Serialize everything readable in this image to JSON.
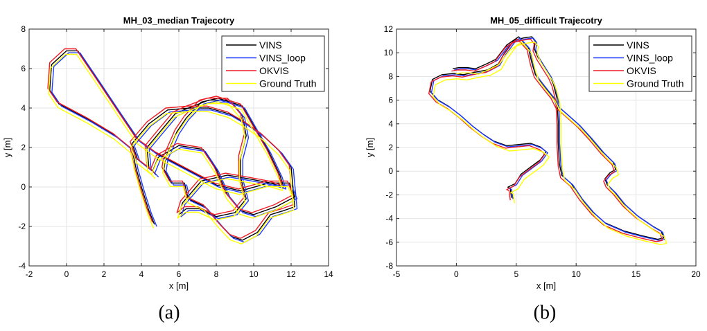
{
  "captions": {
    "a": "(a)",
    "b": "(b)"
  },
  "colors": {
    "VINS": "#000000",
    "VINS_loop": "#1f3bff",
    "OKVIS": "#ee1c25",
    "Ground Truth": "#ffff00"
  },
  "chart_data": [
    {
      "type": "line",
      "title": "MH_03_median Trajecotry",
      "xlabel": "x [m]",
      "ylabel": "y [m]",
      "xlim": [
        -2,
        14
      ],
      "ylim": [
        -4,
        8
      ],
      "xticks": [
        -2,
        0,
        2,
        4,
        6,
        8,
        10,
        12,
        14
      ],
      "yticks": [
        -4,
        -2,
        0,
        2,
        4,
        6,
        8
      ],
      "grid": true,
      "legend": "top-right",
      "series": [
        {
          "name": "VINS",
          "offset": [
            0.0,
            0.0
          ]
        },
        {
          "name": "VINS_loop",
          "offset": [
            0.12,
            -0.1
          ]
        },
        {
          "name": "OKVIS",
          "offset": [
            -0.1,
            0.1
          ]
        },
        {
          "name": "Ground Truth",
          "offset": [
            -0.06,
            -0.18
          ]
        }
      ],
      "path": [
        [
          4.7,
          -1.9
        ],
        [
          4.4,
          -1.2
        ],
        [
          4.0,
          0.0
        ],
        [
          3.7,
          1.0
        ],
        [
          3.5,
          1.9
        ],
        [
          2.6,
          2.6
        ],
        [
          1.2,
          3.4
        ],
        [
          -0.4,
          4.2
        ],
        [
          -0.9,
          4.9
        ],
        [
          -0.8,
          6.2
        ],
        [
          0.0,
          6.9
        ],
        [
          0.6,
          6.9
        ],
        [
          1.6,
          5.5
        ],
        [
          2.8,
          3.8
        ],
        [
          3.8,
          2.4
        ],
        [
          4.8,
          1.7
        ],
        [
          5.8,
          1.2
        ],
        [
          6.8,
          0.7
        ],
        [
          8.0,
          0.1
        ],
        [
          9.3,
          -0.2
        ],
        [
          10.8,
          0.2
        ],
        [
          11.9,
          0.2
        ],
        [
          12.2,
          -0.5
        ],
        [
          11.2,
          -1.0
        ],
        [
          10.0,
          -1.4
        ],
        [
          9.3,
          -1.2
        ],
        [
          8.6,
          -0.4
        ],
        [
          8.0,
          0.9
        ],
        [
          7.3,
          1.9
        ],
        [
          6.0,
          2.1
        ],
        [
          4.9,
          1.5
        ],
        [
          4.6,
          0.8
        ],
        [
          3.8,
          1.4
        ],
        [
          3.5,
          2.2
        ],
        [
          4.4,
          3.2
        ],
        [
          5.4,
          3.9
        ],
        [
          6.6,
          4.0
        ],
        [
          7.6,
          4.0
        ],
        [
          8.7,
          3.7
        ],
        [
          9.6,
          3.2
        ],
        [
          10.5,
          2.6
        ],
        [
          11.4,
          1.8
        ],
        [
          12.0,
          1.0
        ],
        [
          12.2,
          -1.0
        ],
        [
          11.6,
          -1.2
        ],
        [
          10.9,
          -1.4
        ],
        [
          10.2,
          -2.3
        ],
        [
          9.4,
          -2.7
        ],
        [
          8.8,
          -2.5
        ],
        [
          8.2,
          -1.9
        ],
        [
          7.4,
          -1.0
        ],
        [
          6.5,
          -0.6
        ],
        [
          6.3,
          0.2
        ],
        [
          5.6,
          0.2
        ],
        [
          5.2,
          0.9
        ],
        [
          5.3,
          1.5
        ],
        [
          5.9,
          2.8
        ],
        [
          6.4,
          3.5
        ],
        [
          7.2,
          4.3
        ],
        [
          8.1,
          4.5
        ],
        [
          9.4,
          4.1
        ],
        [
          10.0,
          3.1
        ],
        [
          10.8,
          1.8
        ],
        [
          11.4,
          0.6
        ],
        [
          11.6,
          0.0
        ],
        [
          10.9,
          0.2
        ],
        [
          9.8,
          0.4
        ],
        [
          8.6,
          0.6
        ],
        [
          7.2,
          0.3
        ],
        [
          6.2,
          -0.8
        ],
        [
          6.0,
          -1.4
        ],
        [
          6.4,
          -1.1
        ],
        [
          7.1,
          -1.1
        ],
        [
          8.0,
          -1.5
        ],
        [
          9.0,
          -1.3
        ],
        [
          9.6,
          -0.6
        ],
        [
          9.3,
          0.5
        ],
        [
          9.3,
          1.5
        ],
        [
          9.6,
          2.6
        ],
        [
          9.4,
          3.6
        ],
        [
          8.7,
          4.4
        ],
        [
          7.6,
          4.4
        ],
        [
          6.5,
          4.0
        ],
        [
          5.8,
          3.7
        ],
        [
          5.0,
          2.8
        ],
        [
          4.3,
          2.0
        ],
        [
          4.4,
          1.0
        ],
        [
          4.8,
          0.6
        ]
      ]
    },
    {
      "type": "line",
      "title": "MH_05_difficult Trajecotry",
      "xlabel": "x [m]",
      "ylabel": "y [m]",
      "xlim": [
        -5,
        20
      ],
      "ylim": [
        -8,
        12
      ],
      "xticks": [
        -5,
        0,
        5,
        10,
        15,
        20
      ],
      "yticks": [
        -8,
        -6,
        -4,
        -2,
        0,
        2,
        4,
        6,
        8,
        10,
        12
      ],
      "grid": true,
      "legend": "top-right",
      "series": [
        {
          "name": "VINS",
          "offset": [
            0.0,
            0.15
          ]
        },
        {
          "name": "VINS_loop",
          "offset": [
            0.12,
            0.05
          ]
        },
        {
          "name": "OKVIS",
          "offset": [
            -0.1,
            -0.05
          ]
        },
        {
          "name": "Ground Truth",
          "offset": [
            0.25,
            -0.3
          ]
        }
      ],
      "path": [
        [
          4.6,
          -2.4
        ],
        [
          4.5,
          -1.6
        ],
        [
          4.3,
          -1.5
        ],
        [
          4.9,
          -1.2
        ],
        [
          5.4,
          -0.4
        ],
        [
          6.2,
          0.2
        ],
        [
          7.0,
          0.8
        ],
        [
          7.5,
          1.5
        ],
        [
          7.0,
          1.9
        ],
        [
          6.2,
          2.2
        ],
        [
          5.2,
          2.1
        ],
        [
          4.2,
          2.0
        ],
        [
          3.1,
          2.4
        ],
        [
          2.2,
          3.0
        ],
        [
          1.3,
          3.7
        ],
        [
          0.3,
          4.6
        ],
        [
          -0.6,
          5.3
        ],
        [
          -1.6,
          5.9
        ],
        [
          -2.2,
          6.6
        ],
        [
          -2.0,
          7.6
        ],
        [
          -1.2,
          8.0
        ],
        [
          -0.2,
          8.1
        ],
        [
          0.6,
          8.0
        ],
        [
          1.5,
          8.2
        ],
        [
          2.6,
          8.4
        ],
        [
          3.5,
          8.9
        ],
        [
          4.0,
          9.8
        ],
        [
          4.8,
          10.9
        ],
        [
          5.6,
          11.1
        ],
        [
          6.3,
          11.2
        ],
        [
          6.6,
          10.8
        ],
        [
          6.5,
          10.2
        ],
        [
          6.8,
          9.5
        ],
        [
          7.3,
          8.7
        ],
        [
          7.8,
          7.9
        ],
        [
          8.1,
          7.2
        ],
        [
          8.4,
          6.0
        ],
        [
          8.5,
          4.0
        ],
        [
          8.5,
          2.3
        ],
        [
          8.6,
          0.5
        ],
        [
          8.8,
          -0.5
        ],
        [
          9.6,
          -1.2
        ],
        [
          10.4,
          -2.4
        ],
        [
          11.4,
          -3.6
        ],
        [
          12.4,
          -4.5
        ],
        [
          14.0,
          -5.2
        ],
        [
          15.5,
          -5.6
        ],
        [
          16.8,
          -5.9
        ],
        [
          17.3,
          -5.8
        ],
        [
          17.1,
          -5.2
        ],
        [
          16.4,
          -4.8
        ],
        [
          15.1,
          -3.9
        ],
        [
          14.0,
          -2.9
        ],
        [
          13.2,
          -1.9
        ],
        [
          12.6,
          -1.3
        ],
        [
          12.4,
          -0.8
        ],
        [
          12.8,
          -0.3
        ],
        [
          13.3,
          0.0
        ],
        [
          13.1,
          0.6
        ],
        [
          12.2,
          1.5
        ],
        [
          11.2,
          2.7
        ],
        [
          10.2,
          3.8
        ],
        [
          9.2,
          4.7
        ],
        [
          8.4,
          5.4
        ],
        [
          8.0,
          6.2
        ],
        [
          7.2,
          7.2
        ],
        [
          6.6,
          8.0
        ],
        [
          6.3,
          9.0
        ],
        [
          6.0,
          10.3
        ],
        [
          5.2,
          11.2
        ],
        [
          4.2,
          10.5
        ],
        [
          3.3,
          9.3
        ],
        [
          2.5,
          8.9
        ],
        [
          1.6,
          8.5
        ],
        [
          0.9,
          8.6
        ],
        [
          0.2,
          8.6
        ],
        [
          -0.3,
          8.5
        ]
      ]
    }
  ]
}
